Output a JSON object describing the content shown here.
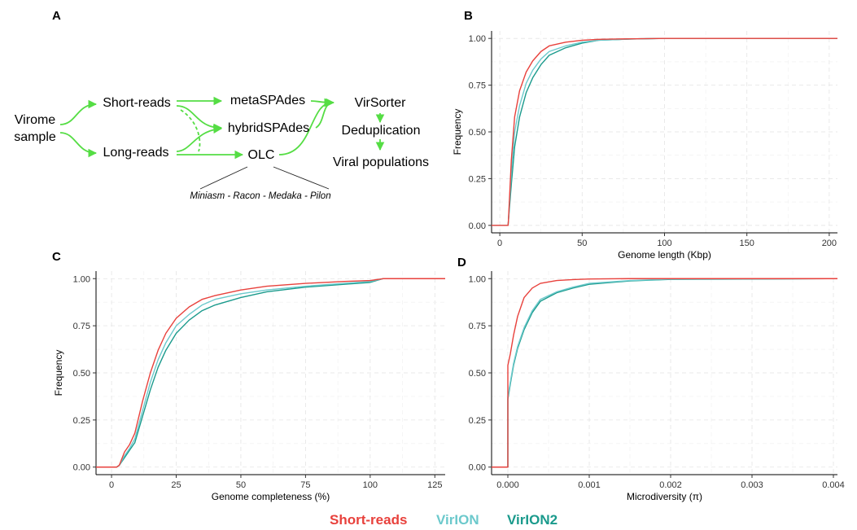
{
  "panel_labels": [
    "A",
    "B",
    "C",
    "D"
  ],
  "diagram": {
    "nodes": {
      "sample_line1": "Virome",
      "sample_line2": "sample",
      "short_reads": "Short-reads",
      "long_reads": "Long-reads",
      "metaspades": "metaSPAdes",
      "hybridspades": "hybridSPAdes",
      "olc": "OLC",
      "virsorter": "VirSorter",
      "dedup": "Deduplication",
      "viral_pop": "Viral populations"
    },
    "olc_pipeline": "Miniasm - Racon - Medaka - Pilon",
    "arrow_color": "#55dd44"
  },
  "legend": [
    {
      "name": "Short-reads",
      "color": "#e8413c"
    },
    {
      "name": "VirION",
      "color": "#6cc9cc"
    },
    {
      "name": "VirION2",
      "color": "#1a9a8c"
    }
  ],
  "chart_data": [
    {
      "panel": "B",
      "type": "line",
      "xlabel": "Genome length (Kbp)",
      "ylabel": "Frequency",
      "xlim": [
        -5,
        205
      ],
      "ylim": [
        -0.04,
        1.04
      ],
      "xticks": [
        "0",
        "50",
        "100",
        "150",
        "200"
      ],
      "yticks": [
        "0.00",
        "0.25",
        "0.50",
        "0.75",
        "1.00"
      ],
      "grid": true,
      "series": [
        {
          "name": "Short-reads",
          "x": [
            -5,
            5,
            5.2,
            7,
            9,
            12,
            16,
            20,
            25,
            30,
            40,
            50,
            60,
            80,
            100,
            205
          ],
          "y": [
            0,
            0,
            0.02,
            0.35,
            0.58,
            0.72,
            0.82,
            0.88,
            0.93,
            0.96,
            0.98,
            0.99,
            0.995,
            0.998,
            1,
            1
          ]
        },
        {
          "name": "VirION",
          "x": [
            -5,
            5,
            5.2,
            7,
            9,
            12,
            16,
            20,
            25,
            30,
            40,
            50,
            60,
            80,
            100,
            205
          ],
          "y": [
            0,
            0,
            0.02,
            0.28,
            0.5,
            0.64,
            0.76,
            0.83,
            0.89,
            0.93,
            0.96,
            0.98,
            0.99,
            0.997,
            1,
            1
          ]
        },
        {
          "name": "VirION2",
          "x": [
            -5,
            5,
            5.2,
            7,
            9,
            12,
            16,
            20,
            25,
            30,
            40,
            50,
            60,
            80,
            100,
            205
          ],
          "y": [
            0,
            0,
            0.02,
            0.22,
            0.42,
            0.58,
            0.71,
            0.79,
            0.86,
            0.91,
            0.95,
            0.975,
            0.99,
            0.997,
            1,
            1
          ]
        }
      ]
    },
    {
      "panel": "C",
      "type": "line",
      "xlabel": "Genome completeness (%)",
      "ylabel": "Frequency",
      "xlim": [
        -6,
        129
      ],
      "ylim": [
        -0.04,
        1.04
      ],
      "xticks": [
        "0",
        "25",
        "50",
        "75",
        "100",
        "125"
      ],
      "yticks": [
        "0.00",
        "0.25",
        "0.50",
        "0.75",
        "1.00"
      ],
      "grid": true,
      "series": [
        {
          "name": "Short-reads",
          "x": [
            -6,
            2,
            3,
            5,
            7,
            9,
            12,
            15,
            18,
            21,
            25,
            30,
            35,
            40,
            50,
            60,
            75,
            90,
            100,
            105,
            129
          ],
          "y": [
            0,
            0,
            0.01,
            0.08,
            0.12,
            0.18,
            0.35,
            0.5,
            0.62,
            0.71,
            0.79,
            0.85,
            0.89,
            0.91,
            0.94,
            0.96,
            0.975,
            0.985,
            0.99,
            1,
            1
          ]
        },
        {
          "name": "VirION",
          "x": [
            -6,
            2,
            3,
            5,
            7,
            9,
            12,
            15,
            18,
            21,
            25,
            30,
            35,
            40,
            50,
            60,
            75,
            90,
            100,
            105,
            129
          ],
          "y": [
            0,
            0,
            0.01,
            0.06,
            0.1,
            0.15,
            0.3,
            0.45,
            0.57,
            0.66,
            0.75,
            0.81,
            0.86,
            0.89,
            0.92,
            0.94,
            0.96,
            0.975,
            0.985,
            1,
            1
          ]
        },
        {
          "name": "VirION2",
          "x": [
            -6,
            2,
            3,
            5,
            7,
            9,
            12,
            15,
            18,
            21,
            25,
            30,
            35,
            40,
            50,
            60,
            75,
            90,
            100,
            105,
            129
          ],
          "y": [
            0,
            0,
            0.01,
            0.05,
            0.09,
            0.13,
            0.27,
            0.41,
            0.53,
            0.62,
            0.71,
            0.78,
            0.83,
            0.86,
            0.9,
            0.93,
            0.955,
            0.97,
            0.98,
            1,
            1
          ]
        }
      ]
    },
    {
      "panel": "D",
      "type": "line",
      "xlabel": "Microdiversity (π)",
      "ylabel": "",
      "xlim": [
        -0.0002,
        0.00405
      ],
      "ylim": [
        -0.04,
        1.04
      ],
      "xticks": [
        "0.000",
        "0.001",
        "0.002",
        "0.003",
        "0.004"
      ],
      "yticks": [
        "0.00",
        "0.25",
        "0.50",
        "0.75",
        "1.00"
      ],
      "grid": true,
      "series": [
        {
          "name": "Short-reads",
          "x": [
            -0.0002,
            0,
            0,
            3e-05,
            7e-05,
            0.00012,
            0.0002,
            0.0003,
            0.0004,
            0.0006,
            0.0008,
            0.001,
            0.0015,
            0.002,
            0.00405
          ],
          "y": [
            0,
            0,
            0.54,
            0.6,
            0.7,
            0.8,
            0.9,
            0.95,
            0.975,
            0.99,
            0.995,
            0.998,
            1,
            1,
            1
          ]
        },
        {
          "name": "VirION",
          "x": [
            -0.0002,
            0,
            0,
            3e-05,
            7e-05,
            0.00012,
            0.0002,
            0.0003,
            0.0004,
            0.0006,
            0.0008,
            0.001,
            0.0015,
            0.002,
            0.00405
          ],
          "y": [
            0,
            0,
            0.37,
            0.45,
            0.55,
            0.64,
            0.74,
            0.83,
            0.89,
            0.93,
            0.955,
            0.975,
            0.99,
            0.997,
            1
          ]
        },
        {
          "name": "VirION2",
          "x": [
            -0.0002,
            0,
            0,
            3e-05,
            7e-05,
            0.00012,
            0.0002,
            0.0003,
            0.0004,
            0.0006,
            0.0008,
            0.001,
            0.0015,
            0.002,
            0.00405
          ],
          "y": [
            0,
            0,
            0.36,
            0.44,
            0.54,
            0.63,
            0.73,
            0.82,
            0.88,
            0.925,
            0.95,
            0.97,
            0.988,
            0.996,
            1
          ]
        }
      ]
    }
  ]
}
